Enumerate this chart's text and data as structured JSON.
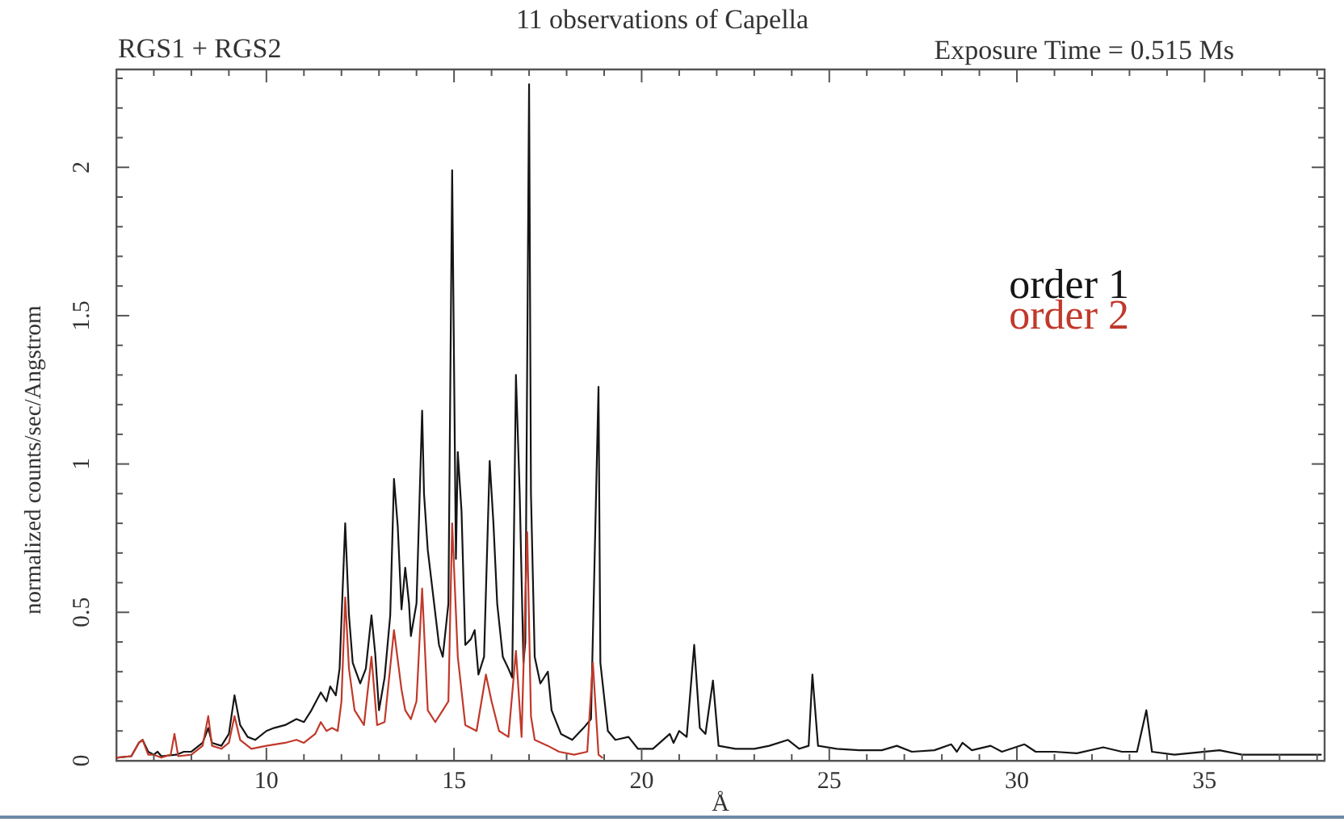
{
  "chart_data": {
    "type": "line",
    "title": "11 observations of Capella",
    "xlabel": "Å",
    "ylabel": "normalized counts/sec/Angstrom",
    "annotations": [
      "RGS1 + RGS2",
      "Exposure Time = 0.515 Ms"
    ],
    "xlim": [
      6,
      38.2
    ],
    "ylim": [
      0,
      2.33
    ],
    "xticks": [
      {
        "value": 7,
        "label": null
      },
      {
        "value": 8,
        "label": null
      },
      {
        "value": 9,
        "label": null
      },
      10,
      {
        "value": 11,
        "label": null
      },
      {
        "value": 12,
        "label": null
      },
      {
        "value": 13,
        "label": null
      },
      {
        "value": 14,
        "label": null
      },
      15,
      {
        "value": 16,
        "label": null
      },
      {
        "value": 17,
        "label": null
      },
      {
        "value": 18,
        "label": null
      },
      {
        "value": 19,
        "label": null
      },
      20,
      {
        "value": 21,
        "label": null
      },
      {
        "value": 22,
        "label": null
      },
      {
        "value": 23,
        "label": null
      },
      {
        "value": 24,
        "label": null
      },
      25,
      {
        "value": 26,
        "label": null
      },
      {
        "value": 27,
        "label": null
      },
      {
        "value": 28,
        "label": null
      },
      {
        "value": 29,
        "label": null
      },
      30,
      {
        "value": 31,
        "label": null
      },
      {
        "value": 32,
        "label": null
      },
      {
        "value": 33,
        "label": null
      },
      {
        "value": 34,
        "label": null
      },
      35,
      {
        "value": 36,
        "label": null
      },
      {
        "value": 37,
        "label": null
      },
      {
        "value": 38,
        "label": null
      }
    ],
    "yticks": [
      0,
      {
        "value": 0.1,
        "label": null
      },
      {
        "value": 0.2,
        "label": null
      },
      {
        "value": 0.3,
        "label": null
      },
      {
        "value": 0.4,
        "label": null
      },
      0.5,
      {
        "value": 0.6,
        "label": null
      },
      {
        "value": 0.7,
        "label": null
      },
      {
        "value": 0.8,
        "label": null
      },
      {
        "value": 0.9,
        "label": null
      },
      1,
      {
        "value": 1.1,
        "label": null
      },
      {
        "value": 1.2,
        "label": null
      },
      {
        "value": 1.3,
        "label": null
      },
      {
        "value": 1.4,
        "label": null
      },
      1.5,
      {
        "value": 1.6,
        "label": null
      },
      {
        "value": 1.7,
        "label": null
      },
      {
        "value": 1.8,
        "label": null
      },
      {
        "value": 1.9,
        "label": null
      },
      2,
      {
        "value": 2.1,
        "label": null
      },
      {
        "value": 2.2,
        "label": null
      },
      {
        "value": 2.3,
        "label": null
      }
    ],
    "grid": false,
    "legend": "top right",
    "marker": "none",
    "line_style": "solid",
    "series": [
      {
        "name": "order 1",
        "color": "#151515",
        "x": [
          6.0,
          6.4,
          6.6,
          6.7,
          6.85,
          7.0,
          7.1,
          7.2,
          7.6,
          7.8,
          8.0,
          8.3,
          8.45,
          8.55,
          8.8,
          9.0,
          9.15,
          9.3,
          9.5,
          9.7,
          10.0,
          10.2,
          10.5,
          10.8,
          11.0,
          11.2,
          11.45,
          11.6,
          11.7,
          11.85,
          11.95,
          12.1,
          12.2,
          12.3,
          12.5,
          12.65,
          12.8,
          12.9,
          13.0,
          13.15,
          13.3,
          13.4,
          13.5,
          13.6,
          13.7,
          13.8,
          13.85,
          14.0,
          14.15,
          14.2,
          14.3,
          14.45,
          14.6,
          14.7,
          14.85,
          14.95,
          15.05,
          15.1,
          15.2,
          15.3,
          15.45,
          15.55,
          15.65,
          15.8,
          15.95,
          16.05,
          16.15,
          16.3,
          16.45,
          16.55,
          16.65,
          16.75,
          16.85,
          16.9,
          17.0,
          17.05,
          17.15,
          17.3,
          17.5,
          17.6,
          17.85,
          18.15,
          18.45,
          18.65,
          18.85,
          18.9,
          19.1,
          19.3,
          19.65,
          19.9,
          20.3,
          20.75,
          20.85,
          21.0,
          21.2,
          21.4,
          21.55,
          21.7,
          21.9,
          22.05,
          22.5,
          23.0,
          23.4,
          23.9,
          24.2,
          24.45,
          24.55,
          24.7,
          25.2,
          25.8,
          26.4,
          26.8,
          27.2,
          27.8,
          28.25,
          28.4,
          28.55,
          28.8,
          29.3,
          29.6,
          30.2,
          30.5,
          31.0,
          31.6,
          32.3,
          32.8,
          33.2,
          33.45,
          33.6,
          34.2,
          35.4,
          36.0,
          37.0,
          38.1
        ],
        "values": [
          0.01,
          0.015,
          0.06,
          0.07,
          0.03,
          0.02,
          0.03,
          0.015,
          0.02,
          0.03,
          0.03,
          0.06,
          0.11,
          0.06,
          0.05,
          0.09,
          0.22,
          0.12,
          0.08,
          0.07,
          0.1,
          0.11,
          0.12,
          0.14,
          0.13,
          0.17,
          0.23,
          0.2,
          0.25,
          0.22,
          0.31,
          0.8,
          0.49,
          0.33,
          0.26,
          0.31,
          0.49,
          0.36,
          0.17,
          0.28,
          0.49,
          0.95,
          0.79,
          0.51,
          0.65,
          0.53,
          0.42,
          0.53,
          1.18,
          0.9,
          0.71,
          0.55,
          0.39,
          0.35,
          0.53,
          1.99,
          0.68,
          1.04,
          0.84,
          0.39,
          0.41,
          0.44,
          0.29,
          0.35,
          1.01,
          0.8,
          0.53,
          0.35,
          0.31,
          0.28,
          1.3,
          0.9,
          0.33,
          0.4,
          2.28,
          0.9,
          0.35,
          0.26,
          0.3,
          0.17,
          0.09,
          0.07,
          0.11,
          0.14,
          1.26,
          0.33,
          0.1,
          0.07,
          0.08,
          0.04,
          0.04,
          0.09,
          0.06,
          0.1,
          0.08,
          0.39,
          0.11,
          0.09,
          0.27,
          0.05,
          0.04,
          0.04,
          0.05,
          0.07,
          0.04,
          0.05,
          0.29,
          0.05,
          0.04,
          0.035,
          0.035,
          0.05,
          0.03,
          0.035,
          0.055,
          0.03,
          0.06,
          0.035,
          0.05,
          0.03,
          0.055,
          0.03,
          0.03,
          0.025,
          0.045,
          0.03,
          0.03,
          0.17,
          0.03,
          0.02,
          0.035,
          0.02,
          0.02,
          0.02
        ]
      },
      {
        "name": "order 2",
        "color": "#c0392b",
        "x": [
          6.0,
          6.4,
          6.6,
          6.7,
          6.85,
          7.0,
          7.2,
          7.45,
          7.55,
          7.65,
          8.0,
          8.3,
          8.45,
          8.55,
          8.8,
          9.0,
          9.15,
          9.3,
          9.6,
          10.0,
          10.5,
          10.8,
          11.0,
          11.3,
          11.45,
          11.6,
          11.75,
          11.9,
          12.0,
          12.1,
          12.2,
          12.35,
          12.6,
          12.8,
          12.95,
          13.15,
          13.4,
          13.6,
          13.7,
          13.85,
          14.0,
          14.15,
          14.3,
          14.5,
          14.7,
          14.85,
          14.95,
          15.1,
          15.3,
          15.6,
          15.85,
          16.0,
          16.2,
          16.45,
          16.65,
          16.8,
          16.95,
          17.05,
          17.15,
          17.5,
          17.8,
          18.2,
          18.55,
          18.7,
          18.85,
          18.95
        ],
        "values": [
          0.01,
          0.015,
          0.06,
          0.07,
          0.02,
          0.02,
          0.01,
          0.02,
          0.09,
          0.015,
          0.02,
          0.05,
          0.15,
          0.05,
          0.04,
          0.06,
          0.15,
          0.07,
          0.04,
          0.05,
          0.06,
          0.07,
          0.06,
          0.09,
          0.13,
          0.1,
          0.11,
          0.1,
          0.2,
          0.55,
          0.31,
          0.17,
          0.12,
          0.35,
          0.12,
          0.13,
          0.44,
          0.24,
          0.17,
          0.14,
          0.2,
          0.58,
          0.17,
          0.13,
          0.17,
          0.2,
          0.8,
          0.35,
          0.12,
          0.1,
          0.29,
          0.2,
          0.1,
          0.08,
          0.37,
          0.08,
          0.77,
          0.15,
          0.07,
          0.05,
          0.03,
          0.02,
          0.03,
          0.33,
          0.02,
          0.01
        ]
      }
    ]
  }
}
